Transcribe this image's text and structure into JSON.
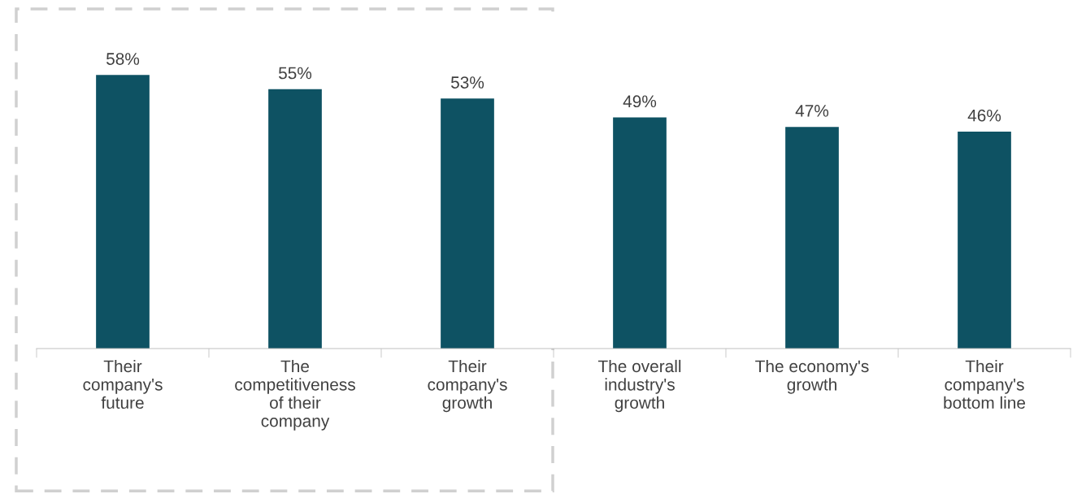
{
  "chart_data": {
    "type": "bar",
    "categories": [
      "Their\ncompany's\nfuture",
      "The\ncompetitiveness\nof their\ncompany",
      "Their\ncompany's\ngrowth",
      "The overall\nindustry's\ngrowth",
      "The economy's\ngrowth",
      "Their\ncompany's\nbottom line"
    ],
    "values": [
      58,
      55,
      53,
      49,
      47,
      46
    ],
    "value_labels": [
      "58%",
      "55%",
      "53%",
      "49%",
      "47%",
      "46%"
    ],
    "color": "#0e5263"
  }
}
